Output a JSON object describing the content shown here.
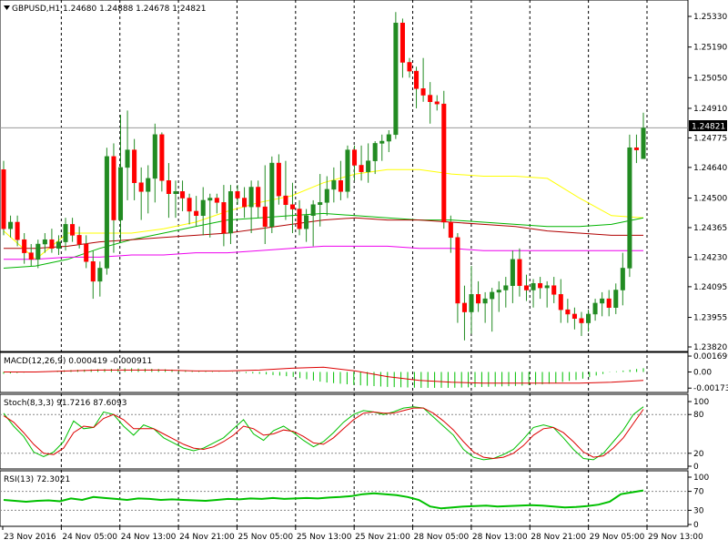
{
  "colors": {
    "background": "#ffffff",
    "bull": "#228b22",
    "bear": "#ff0000",
    "candle_outline": "#000000",
    "ma_yellow": "#ffff00",
    "ma_green": "#00b400",
    "ma_red": "#b00000",
    "ma_magenta": "#ee00ee",
    "macd_hist": "#00c000",
    "macd_signal": "#dd0000",
    "stoch_main": "#00c000",
    "stoch_signal": "#dd0000",
    "rsi": "#00c000",
    "grid": "#000000",
    "price_line": "#999999"
  },
  "header": {
    "title": "GBPUSD,H1  1.24680 1.24888 1.24678 1.24821",
    "arrow_icon": "dropdown-arrow-icon"
  },
  "panels": {
    "macd_label": "MACD(12,26,9) 0.000419 -0.000911",
    "stoch_label": "Stoch(8,3,3) 91.7216 87.6093",
    "rsi_label": "RSI(13) 72.3021"
  },
  "current_price": "1.24821",
  "chart_data": [
    {
      "type": "candlestick",
      "title": "GBPUSD,H1",
      "ohlc_header": [
        1.2468,
        1.24888,
        1.24678,
        1.24821
      ],
      "ylim": [
        1.2382,
        1.2533
      ],
      "y_ticks": [
        "1.25330",
        "1.25190",
        "1.25050",
        "1.24910",
        "1.24775",
        "1.24640",
        "1.24500",
        "1.24365",
        "1.24230",
        "1.24095",
        "1.23955",
        "1.23820"
      ],
      "x_ticks": [
        "23 Nov 2016",
        "24 Nov 05:00",
        "24 Nov 13:00",
        "24 Nov 21:00",
        "25 Nov 05:00",
        "25 Nov 13:00",
        "25 Nov 21:00",
        "28 Nov 05:00",
        "28 Nov 13:00",
        "28 Nov 21:00",
        "29 Nov 05:00",
        "29 Nov 13:00"
      ],
      "current_price": 1.24821,
      "ohlc": [
        [
          1.2463,
          1.2467,
          1.2433,
          1.2436
        ],
        [
          1.2436,
          1.2442,
          1.2432,
          1.2439
        ],
        [
          1.2439,
          1.2442,
          1.2428,
          1.2431
        ],
        [
          1.2431,
          1.2434,
          1.242,
          1.2425
        ],
        [
          1.2425,
          1.2429,
          1.2419,
          1.2422
        ],
        [
          1.2422,
          1.2431,
          1.2418,
          1.2429
        ],
        [
          1.2429,
          1.2434,
          1.2425,
          1.2431
        ],
        [
          1.2431,
          1.2436,
          1.2425,
          1.2427
        ],
        [
          1.2427,
          1.2433,
          1.2424,
          1.243
        ],
        [
          1.243,
          1.2441,
          1.2426,
          1.2438
        ],
        [
          1.2438,
          1.2441,
          1.243,
          1.2433
        ],
        [
          1.2433,
          1.2437,
          1.2427,
          1.2429
        ],
        [
          1.2429,
          1.2433,
          1.2418,
          1.2421
        ],
        [
          1.2421,
          1.2426,
          1.2404,
          1.2412
        ],
        [
          1.2412,
          1.2421,
          1.2405,
          1.2418
        ],
        [
          1.2418,
          1.2473,
          1.2415,
          1.2469
        ],
        [
          1.2469,
          1.2475,
          1.2425,
          1.244
        ],
        [
          1.244,
          1.2488,
          1.243,
          1.2464
        ],
        [
          1.2464,
          1.249,
          1.2449,
          1.2472
        ],
        [
          1.2472,
          1.2477,
          1.2449,
          1.2457
        ],
        [
          1.2457,
          1.2464,
          1.244,
          1.2453
        ],
        [
          1.2453,
          1.2465,
          1.2443,
          1.2459
        ],
        [
          1.2459,
          1.2484,
          1.2448,
          1.2479
        ],
        [
          1.2479,
          1.248,
          1.2453,
          1.2458
        ],
        [
          1.2458,
          1.2466,
          1.2441,
          1.2452
        ],
        [
          1.2452,
          1.2458,
          1.2441,
          1.2453
        ],
        [
          1.2453,
          1.2458,
          1.2444,
          1.245
        ],
        [
          1.245,
          1.2452,
          1.2438,
          1.2444
        ],
        [
          1.2444,
          1.2451,
          1.2437,
          1.2442
        ],
        [
          1.2442,
          1.2455,
          1.2433,
          1.2449
        ],
        [
          1.2449,
          1.2452,
          1.2432,
          1.245
        ],
        [
          1.245,
          1.2452,
          1.2443,
          1.2448
        ],
        [
          1.2448,
          1.2456,
          1.2428,
          1.2434
        ],
        [
          1.2434,
          1.2456,
          1.2429,
          1.2453
        ],
        [
          1.2453,
          1.2456,
          1.2447,
          1.245
        ],
        [
          1.245,
          1.2455,
          1.2441,
          1.2446
        ],
        [
          1.2446,
          1.2458,
          1.2434,
          1.2455
        ],
        [
          1.2455,
          1.2458,
          1.2441,
          1.2446
        ],
        [
          1.2446,
          1.2465,
          1.2429,
          1.2437
        ],
        [
          1.2437,
          1.2469,
          1.2434,
          1.2466
        ],
        [
          1.2466,
          1.247,
          1.2447,
          1.2451
        ],
        [
          1.2451,
          1.2467,
          1.244,
          1.2447
        ],
        [
          1.2447,
          1.2457,
          1.2434,
          1.2445
        ],
        [
          1.2445,
          1.2449,
          1.2433,
          1.2436
        ],
        [
          1.2436,
          1.2445,
          1.243,
          1.2442
        ],
        [
          1.2442,
          1.2449,
          1.2428,
          1.2447
        ],
        [
          1.2447,
          1.2461,
          1.2437,
          1.2448
        ],
        [
          1.2448,
          1.246,
          1.2442,
          1.2454
        ],
        [
          1.2454,
          1.2464,
          1.2448,
          1.2458
        ],
        [
          1.2458,
          1.2467,
          1.2449,
          1.2453
        ],
        [
          1.2453,
          1.2474,
          1.245,
          1.2472
        ],
        [
          1.2472,
          1.2474,
          1.2458,
          1.2465
        ],
        [
          1.2465,
          1.2474,
          1.2458,
          1.2462
        ],
        [
          1.2462,
          1.2475,
          1.2457,
          1.2467
        ],
        [
          1.2467,
          1.2476,
          1.2461,
          1.2475
        ],
        [
          1.2475,
          1.2479,
          1.2467,
          1.2476
        ],
        [
          1.2476,
          1.2481,
          1.2471,
          1.2479
        ],
        [
          1.2479,
          1.2535,
          1.2477,
          1.253
        ],
        [
          1.253,
          1.2532,
          1.2505,
          1.2512
        ],
        [
          1.2512,
          1.2514,
          1.2505,
          1.2508
        ],
        [
          1.2508,
          1.251,
          1.2491,
          1.25
        ],
        [
          1.25,
          1.2514,
          1.2494,
          1.2497
        ],
        [
          1.2497,
          1.2503,
          1.2484,
          1.2494
        ],
        [
          1.2494,
          1.2497,
          1.249,
          1.2493
        ],
        [
          1.2493,
          1.2499,
          1.2436,
          1.2439
        ],
        [
          1.2439,
          1.2442,
          1.2425,
          1.2432
        ],
        [
          1.2432,
          1.2434,
          1.2393,
          1.2402
        ],
        [
          1.2402,
          1.241,
          1.2385,
          1.2398
        ],
        [
          1.2398,
          1.2419,
          1.2388,
          1.2406
        ],
        [
          1.2406,
          1.2412,
          1.2398,
          1.2402
        ],
        [
          1.2402,
          1.2407,
          1.2393,
          1.2404
        ],
        [
          1.2404,
          1.2409,
          1.2389,
          1.2407
        ],
        [
          1.2407,
          1.2412,
          1.2398,
          1.2408
        ],
        [
          1.2408,
          1.2414,
          1.24,
          1.241
        ],
        [
          1.241,
          1.2426,
          1.2402,
          1.2422
        ],
        [
          1.2422,
          1.2427,
          1.2405,
          1.241
        ],
        [
          1.241,
          1.2415,
          1.2403,
          1.2408
        ],
        [
          1.2408,
          1.2413,
          1.24,
          1.2411
        ],
        [
          1.2411,
          1.2414,
          1.2404,
          1.2409
        ],
        [
          1.2409,
          1.2412,
          1.24,
          1.241
        ],
        [
          1.241,
          1.2414,
          1.2402,
          1.2406
        ],
        [
          1.2406,
          1.2413,
          1.2393,
          1.2399
        ],
        [
          1.2399,
          1.2404,
          1.2393,
          1.2397
        ],
        [
          1.2397,
          1.24,
          1.239,
          1.2395
        ],
        [
          1.2395,
          1.2398,
          1.2387,
          1.2393
        ],
        [
          1.2393,
          1.2399,
          1.2389,
          1.2397
        ],
        [
          1.2397,
          1.2404,
          1.2394,
          1.2402
        ],
        [
          1.2402,
          1.2407,
          1.2396,
          1.2404
        ],
        [
          1.2404,
          1.2408,
          1.2396,
          1.24
        ],
        [
          1.24,
          1.2411,
          1.2397,
          1.2408
        ],
        [
          1.2408,
          1.2425,
          1.2401,
          1.2418
        ],
        [
          1.2418,
          1.2479,
          1.2414,
          1.2473
        ],
        [
          1.2473,
          1.2479,
          1.2466,
          1.2472
        ],
        [
          1.2468,
          1.2489,
          1.2468,
          1.2482
        ]
      ],
      "moving_averages": [
        {
          "color": "yellow",
          "values": [
            1.2435,
            1.2422,
            1.2434,
            1.2434,
            1.2434,
            1.2436,
            1.2439,
            1.2444,
            1.2448,
            1.2451,
            1.2457,
            1.2461,
            1.2463,
            1.2463,
            1.2461,
            1.246,
            1.246,
            1.2459,
            1.245,
            1.2442,
            1.2441
          ]
        },
        {
          "color": "green",
          "values": [
            1.2418,
            1.2419,
            1.2422,
            1.2427,
            1.2431,
            1.2434,
            1.2437,
            1.244,
            1.2441,
            1.2442,
            1.2443,
            1.2442,
            1.2441,
            1.244,
            1.244,
            1.2439,
            1.2438,
            1.2437,
            1.2437,
            1.2438,
            1.2441
          ]
        },
        {
          "color": "red",
          "values": [
            1.2427,
            1.2427,
            1.2428,
            1.243,
            1.2431,
            1.2432,
            1.2433,
            1.2434,
            1.2436,
            1.2438,
            1.244,
            1.2441,
            1.244,
            1.244,
            1.2439,
            1.2438,
            1.2437,
            1.2435,
            1.2434,
            1.2433,
            1.2433
          ]
        },
        {
          "color": "magenta",
          "values": [
            1.2422,
            1.2422,
            1.2423,
            1.2423,
            1.2424,
            1.2424,
            1.2425,
            1.2425,
            1.2426,
            1.2427,
            1.2428,
            1.2428,
            1.2428,
            1.2427,
            1.2427,
            1.2426,
            1.2426,
            1.2426,
            1.2426,
            1.2426,
            1.2426
          ]
        }
      ]
    },
    {
      "type": "bar",
      "title": "MACD(12,26,9) 0.000419 -0.000911",
      "ylim": [
        -0.002,
        0.0018
      ],
      "y_ticks": [
        "0.001699",
        "0.00",
        "-0.00173"
      ],
      "series": [
        {
          "name": "MACD",
          "values": [
            -0.0002,
            0.0,
            0.0002,
            0.0003,
            0.0004,
            0.0003,
            0.0001,
            0.0,
            -0.0002,
            -0.0005,
            -0.0011,
            -0.0014,
            -0.0016,
            -0.0017,
            -0.0017,
            -0.0016,
            -0.0015,
            -0.0013,
            -0.0008,
            0.0,
            0.0004
          ]
        },
        {
          "name": "Signal",
          "values": [
            0.0,
            0.0,
            0.0001,
            0.0002,
            0.0002,
            0.0002,
            0.0001,
            0.0001,
            0.0002,
            0.0004,
            0.0005,
            0.0001,
            -0.0005,
            -0.0009,
            -0.0011,
            -0.0012,
            -0.0012,
            -0.0012,
            -0.0012,
            -0.0011,
            -0.0009
          ]
        }
      ]
    },
    {
      "type": "line",
      "title": "Stoch(8,3,3) 91.7216 87.6093",
      "ylim": [
        0,
        100
      ],
      "y_ticks": [
        "100",
        "80",
        "20",
        "0"
      ],
      "levels": [
        80,
        20
      ],
      "series": [
        {
          "name": "Main",
          "values": [
            82,
            62,
            46,
            22,
            15,
            22,
            38,
            70,
            58,
            60,
            84,
            80,
            62,
            48,
            64,
            58,
            44,
            36,
            28,
            24,
            28,
            36,
            44,
            58,
            72,
            50,
            40,
            55,
            62,
            52,
            40,
            30,
            38,
            52,
            68,
            80,
            86,
            84,
            80,
            84,
            90,
            92,
            90,
            76,
            62,
            48,
            26,
            14,
            10,
            12,
            18,
            26,
            42,
            60,
            64,
            60,
            44,
            26,
            12,
            10,
            20,
            38,
            56,
            80,
            92
          ]
        },
        {
          "name": "Signal",
          "values": [
            78,
            68,
            52,
            34,
            20,
            18,
            28,
            52,
            62,
            60,
            74,
            80,
            72,
            58,
            58,
            58,
            50,
            42,
            34,
            28,
            26,
            30,
            38,
            48,
            62,
            58,
            48,
            50,
            56,
            54,
            46,
            36,
            34,
            44,
            58,
            72,
            82,
            84,
            82,
            82,
            86,
            90,
            90,
            82,
            70,
            56,
            38,
            22,
            14,
            12,
            14,
            20,
            32,
            48,
            58,
            60,
            52,
            38,
            22,
            14,
            16,
            28,
            44,
            66,
            88
          ]
        }
      ]
    },
    {
      "type": "line",
      "title": "RSI(13) 72.3021",
      "ylim": [
        0,
        100
      ],
      "y_ticks": [
        "100",
        "70",
        "30",
        "0"
      ],
      "levels": [
        70,
        30
      ],
      "series": [
        {
          "name": "RSI",
          "values": [
            52,
            50,
            48,
            50,
            51,
            49,
            55,
            52,
            58,
            56,
            54,
            52,
            55,
            54,
            52,
            53,
            52,
            51,
            50,
            52,
            54,
            53,
            55,
            54,
            56,
            54,
            55,
            56,
            55,
            57,
            58,
            60,
            64,
            66,
            64,
            62,
            58,
            52,
            38,
            34,
            36,
            38,
            39,
            40,
            38,
            39,
            40,
            41,
            40,
            38,
            36,
            37,
            39,
            42,
            48,
            64,
            68,
            72
          ]
        }
      ]
    }
  ]
}
